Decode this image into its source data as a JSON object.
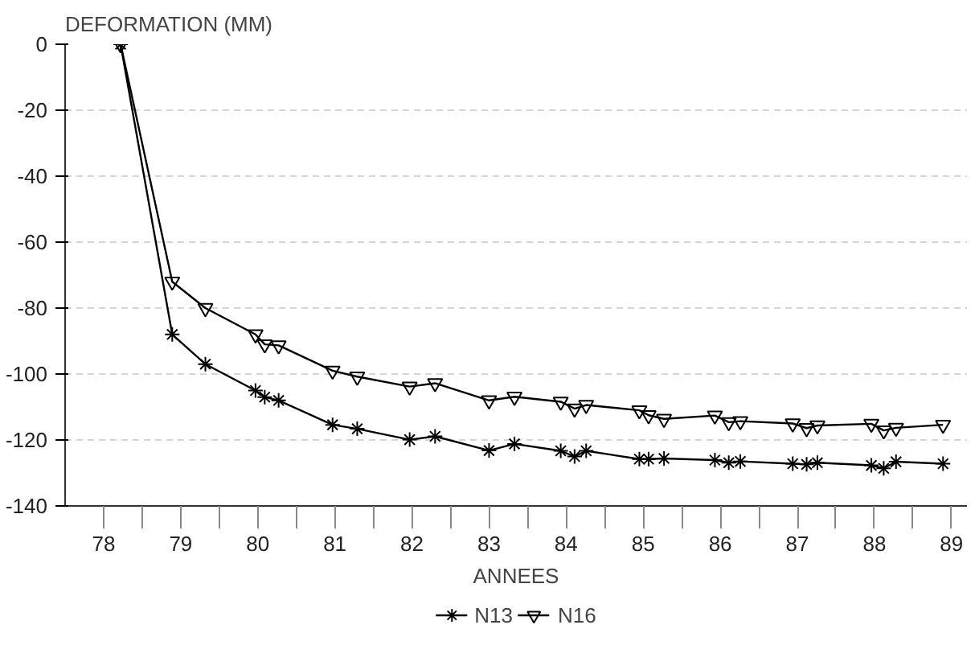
{
  "chart_data": {
    "type": "line",
    "xlabel": "ANNEES",
    "ylabel": "DEFORMATION (MM)",
    "xlim": [
      78,
      89.7
    ],
    "ylim": [
      -140,
      0
    ],
    "xticks": [
      {
        "value": 78.5,
        "label": "78"
      },
      {
        "value": 79,
        "label": null
      },
      {
        "value": 79.5,
        "label": "79"
      },
      {
        "value": 80,
        "label": null
      },
      {
        "value": 80.5,
        "label": "80"
      },
      {
        "value": 81,
        "label": null
      },
      {
        "value": 81.5,
        "label": "81"
      },
      {
        "value": 82,
        "label": null
      },
      {
        "value": 82.5,
        "label": "82"
      },
      {
        "value": 83,
        "label": null
      },
      {
        "value": 83.5,
        "label": "83"
      },
      {
        "value": 84,
        "label": null
      },
      {
        "value": 84.5,
        "label": "84"
      },
      {
        "value": 85,
        "label": null
      },
      {
        "value": 85.5,
        "label": "85"
      },
      {
        "value": 86,
        "label": null
      },
      {
        "value": 86.5,
        "label": "86"
      },
      {
        "value": 87,
        "label": null
      },
      {
        "value": 87.5,
        "label": "87"
      },
      {
        "value": 88,
        "label": null
      },
      {
        "value": 88.5,
        "label": "88"
      },
      {
        "value": 89,
        "label": null
      },
      {
        "value": 89.5,
        "label": "89"
      }
    ],
    "yticks": [
      0,
      -20,
      -40,
      -60,
      -80,
      -100,
      -120,
      -140
    ],
    "grid": "y",
    "legend": "bottom",
    "series": [
      {
        "name": "N13",
        "color": "#000000",
        "marker": "cross",
        "x": [
          78.72,
          79.39,
          79.82,
          80.47,
          80.59,
          80.77,
          81.47,
          81.79,
          82.47,
          82.8,
          83.5,
          83.83,
          84.43,
          84.61,
          84.76,
          85.45,
          85.57,
          85.77,
          86.43,
          86.61,
          86.76,
          87.44,
          87.62,
          87.76,
          88.46,
          88.62,
          88.78,
          89.39
        ],
        "values": [
          0,
          -88,
          -97,
          -105,
          -107,
          -108,
          -115.4,
          -116.6,
          -119.9,
          -118.9,
          -123.2,
          -121.2,
          -123.3,
          -125,
          -123.3,
          -125.8,
          -125.8,
          -125.6,
          -126.1,
          -126.9,
          -126.5,
          -127.2,
          -127.4,
          -126.9,
          -127.7,
          -128.6,
          -126.6,
          -127.2
        ]
      },
      {
        "name": "N16",
        "color": "#000000",
        "marker": "triangle",
        "x": [
          78.72,
          79.39,
          79.82,
          80.47,
          80.59,
          80.77,
          81.47,
          81.79,
          82.47,
          82.8,
          83.5,
          83.83,
          84.43,
          84.61,
          84.76,
          85.45,
          85.57,
          85.77,
          86.43,
          86.61,
          86.76,
          87.44,
          87.62,
          87.76,
          88.46,
          88.62,
          88.78,
          89.39
        ],
        "values": [
          0,
          -72,
          -80,
          -88,
          -91,
          -91.3,
          -99,
          -100.8,
          -103.8,
          -102.8,
          -108,
          -106.9,
          -108.4,
          -110.5,
          -109.4,
          -111,
          -112.5,
          -113.6,
          -112.6,
          -114.6,
          -114.3,
          -115,
          -116.4,
          -115.6,
          -115.1,
          -117.1,
          -116.3,
          -115.4
        ]
      }
    ]
  }
}
